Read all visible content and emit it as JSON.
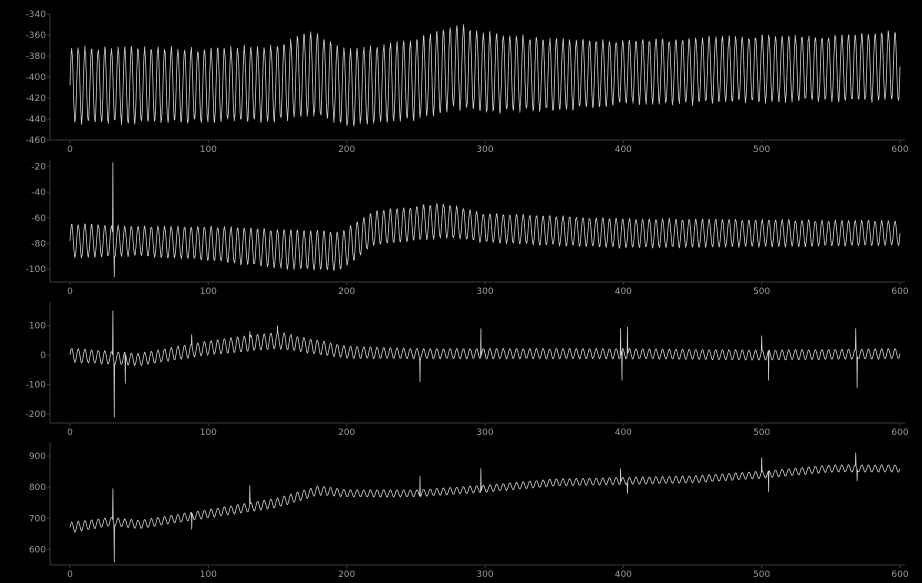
{
  "theme": {
    "background": "#000000",
    "line": "#cfcfcf",
    "axis": "#3a3a3a",
    "tick_text": "#9a9a9a"
  },
  "chart_data": [
    {
      "type": "line",
      "xlim": [
        0,
        600
      ],
      "ylim": [
        -460,
        -340
      ],
      "xticks": [
        0,
        100,
        200,
        300,
        400,
        500,
        600
      ],
      "yticks": [
        -340,
        -360,
        -380,
        -400,
        -420,
        -440,
        -460
      ],
      "xticklabels": [
        "0",
        "100",
        "200",
        "300",
        "400",
        "500",
        "600"
      ],
      "yticklabels": [
        "-340",
        "-360",
        "-380",
        "-400",
        "-420",
        "-440",
        "-460"
      ],
      "series": [
        {
          "x": [
            0,
            50,
            100,
            150,
            175,
            200,
            250,
            280,
            300,
            350,
            400,
            450,
            500,
            550,
            600
          ],
          "center": [
            -408,
            -408,
            -408,
            -406,
            -396,
            -410,
            -402,
            -390,
            -395,
            -398,
            -395,
            -394,
            -392,
            -392,
            -390
          ],
          "amplitude": [
            38,
            38,
            37,
            38,
            42,
            38,
            40,
            42,
            40,
            36,
            32,
            33,
            33,
            33,
            35
          ],
          "period": 4.8,
          "spikes": []
        }
      ]
    },
    {
      "type": "line",
      "xlim": [
        0,
        600
      ],
      "ylim": [
        -110,
        -15
      ],
      "xticks": [
        0,
        100,
        200,
        300,
        400,
        500,
        600
      ],
      "yticks": [
        -20,
        -40,
        -60,
        -80,
        -100
      ],
      "xticklabels": [
        "0",
        "100",
        "200",
        "300",
        "400",
        "500",
        "600"
      ],
      "yticklabels": [
        "-20",
        "-40",
        "-60",
        "-80",
        "-100"
      ],
      "series": [
        {
          "x": [
            0,
            50,
            100,
            150,
            195,
            220,
            270,
            300,
            400,
            500,
            600
          ],
          "center": [
            -78,
            -78,
            -80,
            -84,
            -86,
            -68,
            -62,
            -68,
            -72,
            -72,
            -72
          ],
          "amplitude": [
            14,
            12,
            14,
            16,
            16,
            14,
            14,
            12,
            12,
            11,
            10
          ],
          "period": 4.8,
          "spikes": [
            {
              "x": 31,
              "y": -17
            },
            {
              "x": 32,
              "y": -106
            }
          ]
        }
      ]
    },
    {
      "type": "line",
      "xlim": [
        0,
        600
      ],
      "ylim": [
        -230,
        180
      ],
      "xticks": [
        0,
        100,
        200,
        300,
        400,
        500,
        600
      ],
      "yticks": [
        100,
        0,
        -100,
        -200
      ],
      "xticklabels": [
        "0",
        "100",
        "200",
        "300",
        "400",
        "500",
        "600"
      ],
      "yticklabels": [
        "100",
        "0",
        "-100",
        "-200"
      ],
      "series": [
        {
          "x": [
            0,
            50,
            100,
            150,
            200,
            250,
            300,
            400,
            500,
            600
          ],
          "center": [
            0,
            -15,
            25,
            50,
            10,
            5,
            5,
            5,
            0,
            5
          ],
          "amplitude": [
            25,
            22,
            25,
            30,
            22,
            18,
            18,
            18,
            18,
            18
          ],
          "period": 4.8,
          "spikes": [
            {
              "x": 31,
              "y": 150
            },
            {
              "x": 32,
              "y": -210
            },
            {
              "x": 40,
              "y": -95
            },
            {
              "x": 88,
              "y": 70
            },
            {
              "x": 130,
              "y": 80
            },
            {
              "x": 150,
              "y": 100
            },
            {
              "x": 253,
              "y": -90
            },
            {
              "x": 297,
              "y": 90
            },
            {
              "x": 398,
              "y": 90
            },
            {
              "x": 399,
              "y": -85
            },
            {
              "x": 403,
              "y": 95
            },
            {
              "x": 500,
              "y": 65
            },
            {
              "x": 505,
              "y": -85
            },
            {
              "x": 568,
              "y": 90
            },
            {
              "x": 569,
              "y": -110
            }
          ]
        }
      ]
    },
    {
      "type": "line",
      "xlim": [
        0,
        600
      ],
      "ylim": [
        550,
        945
      ],
      "xticks": [
        0,
        100,
        200,
        300,
        400,
        500,
        600
      ],
      "yticks": [
        900,
        800,
        700,
        600
      ],
      "xticklabels": [
        "0",
        "100",
        "200",
        "300",
        "400",
        "500",
        "600"
      ],
      "yticklabels": [
        "900",
        "800",
        "700",
        "600"
      ],
      "series": [
        {
          "x": [
            0,
            30,
            50,
            100,
            150,
            180,
            200,
            250,
            300,
            350,
            400,
            450,
            500,
            550,
            600
          ],
          "center": [
            670,
            690,
            680,
            715,
            750,
            790,
            780,
            780,
            795,
            815,
            820,
            825,
            840,
            860,
            860
          ],
          "amplitude": [
            18,
            14,
            14,
            14,
            16,
            16,
            12,
            12,
            12,
            12,
            12,
            12,
            12,
            12,
            12
          ],
          "period": 4.8,
          "spikes": [
            {
              "x": 31,
              "y": 795
            },
            {
              "x": 32,
              "y": 560
            },
            {
              "x": 88,
              "y": 665
            },
            {
              "x": 130,
              "y": 805
            },
            {
              "x": 253,
              "y": 835
            },
            {
              "x": 297,
              "y": 860
            },
            {
              "x": 398,
              "y": 860
            },
            {
              "x": 403,
              "y": 780
            },
            {
              "x": 500,
              "y": 895
            },
            {
              "x": 505,
              "y": 785
            },
            {
              "x": 568,
              "y": 910
            },
            {
              "x": 569,
              "y": 820
            }
          ]
        }
      ]
    }
  ]
}
